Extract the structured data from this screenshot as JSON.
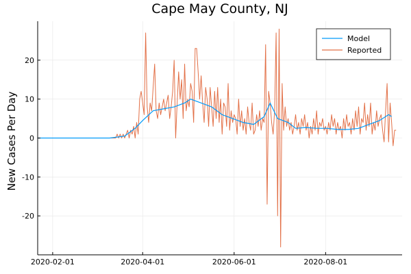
{
  "chart_data": {
    "type": "line",
    "title": "Cape May County, NJ",
    "xlabel": "",
    "ylabel": "New Cases Per Day",
    "x_axis_type": "date",
    "xlim": [
      "2020-01-22",
      "2020-09-21"
    ],
    "ylim": [
      -30,
      30
    ],
    "x_ticks": [
      "2020-02-01",
      "2020-04-01",
      "2020-06-01",
      "2020-08-01"
    ],
    "y_ticks": [
      -20,
      -10,
      0,
      10,
      20
    ],
    "grid": true,
    "legend_position": "top-right",
    "series": [
      {
        "name": "Model",
        "color": "#009AFA",
        "points": [
          [
            "2020-01-22",
            0
          ],
          [
            "2020-03-10",
            0
          ],
          [
            "2020-03-20",
            0.5
          ],
          [
            "2020-03-27",
            2.5
          ],
          [
            "2020-04-01",
            4.5
          ],
          [
            "2020-04-08",
            7
          ],
          [
            "2020-04-15",
            7.5
          ],
          [
            "2020-04-22",
            8
          ],
          [
            "2020-04-29",
            9
          ],
          [
            "2020-05-03",
            10
          ],
          [
            "2020-05-10",
            9
          ],
          [
            "2020-05-17",
            8
          ],
          [
            "2020-05-24",
            6
          ],
          [
            "2020-05-31",
            5
          ],
          [
            "2020-06-07",
            4
          ],
          [
            "2020-06-14",
            3.5
          ],
          [
            "2020-06-21",
            5.5
          ],
          [
            "2020-06-25",
            9
          ],
          [
            "2020-06-30",
            5
          ],
          [
            "2020-07-07",
            4
          ],
          [
            "2020-07-12",
            2.5
          ],
          [
            "2020-07-19",
            2.7
          ],
          [
            "2020-07-26",
            2.5
          ],
          [
            "2020-08-02",
            2.5
          ],
          [
            "2020-08-09",
            2.2
          ],
          [
            "2020-08-16",
            2.2
          ],
          [
            "2020-08-23",
            2.5
          ],
          [
            "2020-08-30",
            3.5
          ],
          [
            "2020-09-06",
            4.5
          ],
          [
            "2020-09-12",
            6
          ],
          [
            "2020-09-14",
            5.5
          ]
        ]
      },
      {
        "name": "Reported",
        "color": "#E26F46",
        "points": [
          [
            "2020-01-22",
            0
          ],
          [
            "2020-03-14",
            0
          ],
          [
            "2020-03-15",
            1
          ],
          [
            "2020-03-16",
            0
          ],
          [
            "2020-03-17",
            1
          ],
          [
            "2020-03-18",
            0
          ],
          [
            "2020-03-19",
            1
          ],
          [
            "2020-03-20",
            0
          ],
          [
            "2020-03-21",
            1
          ],
          [
            "2020-03-22",
            2
          ],
          [
            "2020-03-23",
            0
          ],
          [
            "2020-03-24",
            2
          ],
          [
            "2020-03-25",
            1
          ],
          [
            "2020-03-26",
            3
          ],
          [
            "2020-03-27",
            0
          ],
          [
            "2020-03-28",
            4
          ],
          [
            "2020-03-29",
            1
          ],
          [
            "2020-03-30",
            10
          ],
          [
            "2020-03-31",
            12
          ],
          [
            "2020-04-01",
            9
          ],
          [
            "2020-04-02",
            6
          ],
          [
            "2020-04-03",
            27
          ],
          [
            "2020-04-04",
            8
          ],
          [
            "2020-04-05",
            4
          ],
          [
            "2020-04-06",
            9
          ],
          [
            "2020-04-07",
            7
          ],
          [
            "2020-04-08",
            13
          ],
          [
            "2020-04-09",
            19
          ],
          [
            "2020-04-10",
            7
          ],
          [
            "2020-04-11",
            5
          ],
          [
            "2020-04-12",
            9
          ],
          [
            "2020-04-13",
            6
          ],
          [
            "2020-04-14",
            8
          ],
          [
            "2020-04-15",
            10
          ],
          [
            "2020-04-16",
            7
          ],
          [
            "2020-04-17",
            9
          ],
          [
            "2020-04-18",
            11
          ],
          [
            "2020-04-19",
            5
          ],
          [
            "2020-04-20",
            8
          ],
          [
            "2020-04-21",
            12
          ],
          [
            "2020-04-22",
            20
          ],
          [
            "2020-04-23",
            0
          ],
          [
            "2020-04-24",
            9
          ],
          [
            "2020-04-25",
            17
          ],
          [
            "2020-04-26",
            10
          ],
          [
            "2020-04-27",
            15
          ],
          [
            "2020-04-28",
            5
          ],
          [
            "2020-04-29",
            19
          ],
          [
            "2020-04-30",
            7
          ],
          [
            "2020-05-01",
            10
          ],
          [
            "2020-05-02",
            8
          ],
          [
            "2020-05-03",
            14
          ],
          [
            "2020-05-04",
            12
          ],
          [
            "2020-05-05",
            4
          ],
          [
            "2020-05-06",
            23
          ],
          [
            "2020-05-07",
            23
          ],
          [
            "2020-05-08",
            17
          ],
          [
            "2020-05-09",
            10
          ],
          [
            "2020-05-10",
            16
          ],
          [
            "2020-05-11",
            9
          ],
          [
            "2020-05-12",
            4
          ],
          [
            "2020-05-13",
            13
          ],
          [
            "2020-05-14",
            10
          ],
          [
            "2020-05-15",
            3
          ],
          [
            "2020-05-16",
            13
          ],
          [
            "2020-05-17",
            8
          ],
          [
            "2020-05-18",
            3
          ],
          [
            "2020-05-19",
            12
          ],
          [
            "2020-05-20",
            5
          ],
          [
            "2020-05-21",
            13
          ],
          [
            "2020-05-22",
            4
          ],
          [
            "2020-05-23",
            10
          ],
          [
            "2020-05-24",
            1
          ],
          [
            "2020-05-25",
            9
          ],
          [
            "2020-05-26",
            8
          ],
          [
            "2020-05-27",
            3
          ],
          [
            "2020-05-28",
            14
          ],
          [
            "2020-05-29",
            2
          ],
          [
            "2020-05-30",
            7
          ],
          [
            "2020-05-31",
            4
          ],
          [
            "2020-06-01",
            6
          ],
          [
            "2020-06-02",
            5
          ],
          [
            "2020-06-03",
            1
          ],
          [
            "2020-06-04",
            10
          ],
          [
            "2020-06-05",
            3
          ],
          [
            "2020-06-06",
            7
          ],
          [
            "2020-06-07",
            2
          ],
          [
            "2020-06-08",
            5
          ],
          [
            "2020-06-09",
            1
          ],
          [
            "2020-06-10",
            8
          ],
          [
            "2020-06-11",
            4
          ],
          [
            "2020-06-12",
            2
          ],
          [
            "2020-06-13",
            9
          ],
          [
            "2020-06-14",
            1
          ],
          [
            "2020-06-15",
            2
          ],
          [
            "2020-06-16",
            6
          ],
          [
            "2020-06-17",
            3
          ],
          [
            "2020-06-18",
            7
          ],
          [
            "2020-06-19",
            2
          ],
          [
            "2020-06-20",
            5
          ],
          [
            "2020-06-21",
            4
          ],
          [
            "2020-06-22",
            24
          ],
          [
            "2020-06-23",
            -17
          ],
          [
            "2020-06-24",
            12
          ],
          [
            "2020-06-25",
            9
          ],
          [
            "2020-06-26",
            4
          ],
          [
            "2020-06-27",
            1
          ],
          [
            "2020-06-28",
            7
          ],
          [
            "2020-06-29",
            27
          ],
          [
            "2020-06-30",
            -20
          ],
          [
            "2020-07-01",
            28
          ],
          [
            "2020-07-02",
            -28
          ],
          [
            "2020-07-03",
            14
          ],
          [
            "2020-07-04",
            2
          ],
          [
            "2020-07-05",
            8
          ],
          [
            "2020-07-06",
            3
          ],
          [
            "2020-07-07",
            5
          ],
          [
            "2020-07-08",
            2
          ],
          [
            "2020-07-09",
            4
          ],
          [
            "2020-07-10",
            1
          ],
          [
            "2020-07-11",
            3
          ],
          [
            "2020-07-12",
            6
          ],
          [
            "2020-07-13",
            2
          ],
          [
            "2020-07-14",
            4
          ],
          [
            "2020-07-15",
            1
          ],
          [
            "2020-07-16",
            5
          ],
          [
            "2020-07-17",
            3
          ],
          [
            "2020-07-18",
            6
          ],
          [
            "2020-07-19",
            2
          ],
          [
            "2020-07-20",
            4
          ],
          [
            "2020-07-21",
            0
          ],
          [
            "2020-07-22",
            3
          ],
          [
            "2020-07-23",
            1
          ],
          [
            "2020-07-24",
            5
          ],
          [
            "2020-07-25",
            2
          ],
          [
            "2020-07-26",
            7
          ],
          [
            "2020-07-27",
            1
          ],
          [
            "2020-07-28",
            4
          ],
          [
            "2020-07-29",
            3
          ],
          [
            "2020-07-30",
            5
          ],
          [
            "2020-07-31",
            2
          ],
          [
            "2020-08-01",
            3
          ],
          [
            "2020-08-02",
            1
          ],
          [
            "2020-08-03",
            4
          ],
          [
            "2020-08-04",
            2
          ],
          [
            "2020-08-05",
            6
          ],
          [
            "2020-08-06",
            3
          ],
          [
            "2020-08-07",
            5
          ],
          [
            "2020-08-08",
            1
          ],
          [
            "2020-08-09",
            4
          ],
          [
            "2020-08-10",
            2
          ],
          [
            "2020-08-11",
            3
          ],
          [
            "2020-08-12",
            0
          ],
          [
            "2020-08-13",
            5
          ],
          [
            "2020-08-14",
            2
          ],
          [
            "2020-08-15",
            6
          ],
          [
            "2020-08-16",
            3
          ],
          [
            "2020-08-17",
            4
          ],
          [
            "2020-08-18",
            1
          ],
          [
            "2020-08-19",
            5
          ],
          [
            "2020-08-20",
            2
          ],
          [
            "2020-08-21",
            7
          ],
          [
            "2020-08-22",
            3
          ],
          [
            "2020-08-23",
            8
          ],
          [
            "2020-08-24",
            1
          ],
          [
            "2020-08-25",
            5
          ],
          [
            "2020-08-26",
            4
          ],
          [
            "2020-08-27",
            9
          ],
          [
            "2020-08-28",
            2
          ],
          [
            "2020-08-29",
            6
          ],
          [
            "2020-08-30",
            3
          ],
          [
            "2020-08-31",
            9
          ],
          [
            "2020-09-01",
            1
          ],
          [
            "2020-09-02",
            4
          ],
          [
            "2020-09-03",
            2
          ],
          [
            "2020-09-04",
            7
          ],
          [
            "2020-09-05",
            3
          ],
          [
            "2020-09-06",
            5
          ],
          [
            "2020-09-07",
            6
          ],
          [
            "2020-09-08",
            2
          ],
          [
            "2020-09-09",
            -1
          ],
          [
            "2020-09-10",
            7
          ],
          [
            "2020-09-11",
            14
          ],
          [
            "2020-09-12",
            -1
          ],
          [
            "2020-09-13",
            9
          ],
          [
            "2020-09-14",
            4
          ],
          [
            "2020-09-15",
            -2
          ],
          [
            "2020-09-16",
            2
          ],
          [
            "2020-09-17",
            2
          ]
        ]
      }
    ]
  }
}
